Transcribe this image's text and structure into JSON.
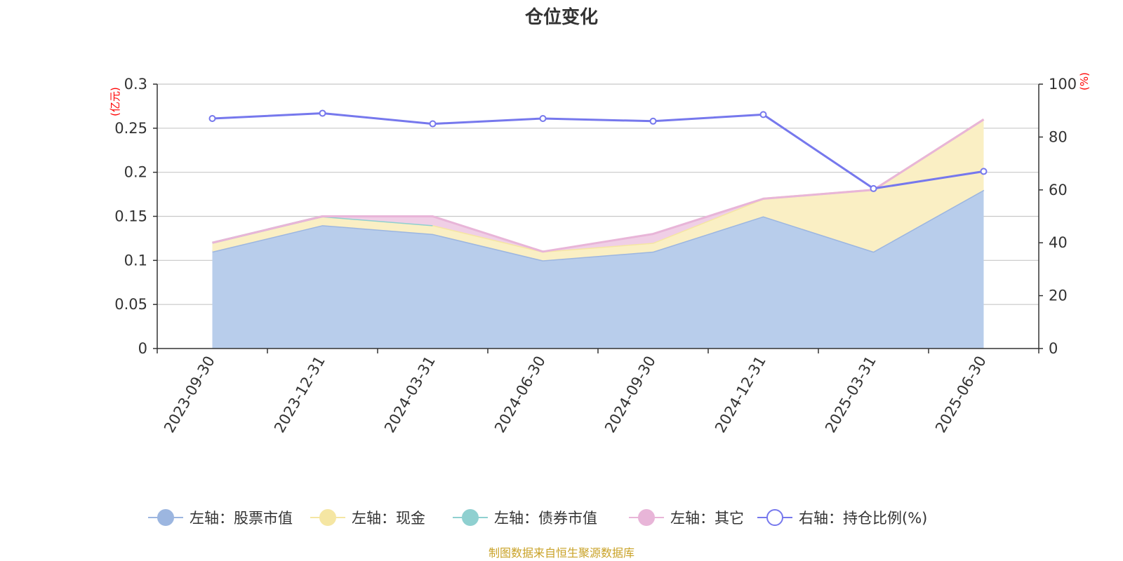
{
  "chart_data": {
    "type": "area",
    "title": "仓位变化",
    "categories": [
      "2023-09-30",
      "2023-12-31",
      "2024-03-31",
      "2024-06-30",
      "2024-09-30",
      "2024-12-31",
      "2025-03-31",
      "2025-06-30"
    ],
    "left_axis": {
      "unit": "(亿元)",
      "ylim": [
        0,
        0.3
      ],
      "ticks": [
        "0",
        "0.05",
        "0.1",
        "0.15",
        "0.2",
        "0.25",
        "0.3"
      ],
      "tick_values": [
        0,
        0.05,
        0.1,
        0.15,
        0.2,
        0.25,
        0.3
      ]
    },
    "right_axis": {
      "unit": "(%)",
      "ylim": [
        0,
        100
      ],
      "ticks": [
        "0",
        "20",
        "40",
        "60",
        "80",
        "100"
      ],
      "tick_values": [
        0,
        20,
        40,
        60,
        80,
        100
      ]
    },
    "stacked_series": [
      {
        "name": "左轴：股票市值",
        "axis": "left",
        "color": "#9cb6e0",
        "fill": "#b8cdeb",
        "values": [
          0.11,
          0.14,
          0.13,
          0.1,
          0.11,
          0.15,
          0.11,
          0.18
        ]
      },
      {
        "name": "左轴：现金",
        "axis": "left",
        "color": "#f5e6a3",
        "fill": "#faefc4",
        "values": [
          0.01,
          0.01,
          0.01,
          0.01,
          0.01,
          0.02,
          0.07,
          0.08
        ]
      },
      {
        "name": "左轴：债券市值",
        "axis": "left",
        "color": "#8fd0d0",
        "fill": "#b5e0e0",
        "values": [
          0,
          0,
          0,
          null,
          null,
          null,
          null,
          null
        ]
      },
      {
        "name": "左轴：其它",
        "axis": "left",
        "color": "#e8b5d8",
        "fill": "#f0cfe6",
        "values": [
          0,
          0,
          0.01,
          0,
          0.01,
          0,
          0,
          0
        ]
      }
    ],
    "line_series": [
      {
        "name": "右轴：持仓比例(%)",
        "axis": "right",
        "color": "#7678ed",
        "values": [
          87,
          89,
          85,
          87,
          86,
          88.5,
          60.5,
          67
        ]
      }
    ],
    "grid": true,
    "legend_position": "bottom"
  },
  "source_note": "制图数据来自恒生聚源数据库"
}
